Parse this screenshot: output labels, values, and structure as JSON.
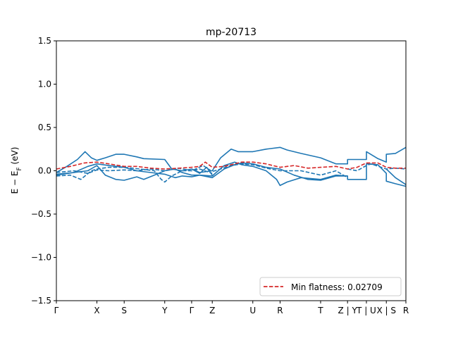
{
  "chart_data": {
    "type": "line",
    "title": "mp-20713",
    "ylabel": "E − E_F (eV)",
    "xlabel": "",
    "ylim": [
      -1.5,
      1.5
    ],
    "yticks": [
      -1.5,
      -1.0,
      -0.5,
      0.0,
      0.5,
      1.0,
      1.5
    ],
    "ytick_labels": [
      "−1.5",
      "−1.0",
      "−0.5",
      "0.0",
      "0.5",
      "1.0",
      "1.5"
    ],
    "xlim": [
      0,
      1
    ],
    "xticks": [
      {
        "label": "Γ",
        "pos": 0.0
      },
      {
        "label": "X",
        "pos": 0.116
      },
      {
        "label": "S",
        "pos": 0.194
      },
      {
        "label": "Y",
        "pos": 0.31
      },
      {
        "label": "Γ",
        "pos": 0.387
      },
      {
        "label": "Z",
        "pos": 0.446
      },
      {
        "label": "U",
        "pos": 0.562
      },
      {
        "label": "R",
        "pos": 0.64
      },
      {
        "label": "T",
        "pos": 0.756
      },
      {
        "label": "Z | Y",
        "pos": 0.833
      },
      {
        "label": "T | U",
        "pos": 0.887
      },
      {
        "label": "X | S",
        "pos": 0.944
      },
      {
        "label": "R",
        "pos": 1.0
      }
    ],
    "grid": false,
    "legend": {
      "position": "bottom-right",
      "entries": [
        "Min flatness: 0.02709"
      ]
    },
    "colors": {
      "bands": "#1f77b4",
      "flat": "#d62728"
    },
    "series": [
      {
        "style": "solid",
        "color": "#1f77b4",
        "x": [
          0,
          0.03,
          0.06,
          0.082,
          0.1,
          0.116,
          0.14,
          0.17,
          0.194,
          0.23,
          0.25,
          0.31,
          0.33,
          0.36,
          0.387,
          0.41,
          0.446,
          0.47,
          0.5,
          0.52,
          0.562,
          0.6,
          0.64,
          0.66,
          0.7,
          0.756,
          0.8,
          0.833,
          0.833,
          0.887,
          0.887,
          0.92,
          0.944,
          0.944,
          0.97,
          1.0
        ],
        "y": [
          -0.02,
          0.05,
          0.13,
          0.22,
          0.15,
          0.12,
          0.15,
          0.19,
          0.19,
          0.16,
          0.14,
          0.13,
          0.02,
          0.0,
          0.02,
          -0.02,
          0.0,
          0.15,
          0.25,
          0.22,
          0.22,
          0.25,
          0.27,
          0.24,
          0.2,
          0.15,
          0.08,
          0.08,
          0.13,
          0.13,
          0.22,
          0.14,
          0.1,
          0.19,
          0.2,
          0.27
        ]
      },
      {
        "style": "solid",
        "color": "#1f77b4",
        "x": [
          0,
          0.05,
          0.09,
          0.116,
          0.15,
          0.194,
          0.23,
          0.27,
          0.31,
          0.34,
          0.36,
          0.387,
          0.41,
          0.446,
          0.48,
          0.51,
          0.53,
          0.562,
          0.6,
          0.63,
          0.64,
          0.66,
          0.7,
          0.756,
          0.8,
          0.833,
          0.833,
          0.887,
          0.887,
          0.92,
          0.944,
          0.944,
          0.97,
          1.0
        ],
        "y": [
          -0.04,
          -0.02,
          0.05,
          0.08,
          0.06,
          0.04,
          0.0,
          -0.02,
          -0.04,
          -0.08,
          -0.06,
          -0.07,
          -0.05,
          -0.06,
          0.06,
          0.1,
          0.07,
          0.05,
          0.0,
          -0.1,
          -0.17,
          -0.13,
          -0.08,
          -0.1,
          -0.05,
          -0.06,
          -0.1,
          -0.1,
          0.08,
          0.07,
          -0.03,
          -0.12,
          -0.15,
          -0.18
        ]
      },
      {
        "style": "solid",
        "color": "#1f77b4",
        "x": [
          0,
          0.05,
          0.09,
          0.116,
          0.14,
          0.17,
          0.194,
          0.23,
          0.25,
          0.28,
          0.31,
          0.34,
          0.36,
          0.387,
          0.41,
          0.446,
          0.48,
          0.51,
          0.53,
          0.562,
          0.6,
          0.64,
          0.68,
          0.72,
          0.756,
          0.8,
          0.833
        ],
        "y": [
          -0.05,
          -0.02,
          0.0,
          0.06,
          -0.05,
          -0.1,
          -0.11,
          -0.07,
          -0.1,
          -0.05,
          0.0,
          0.02,
          -0.02,
          -0.05,
          -0.05,
          -0.08,
          0.02,
          0.07,
          0.09,
          0.08,
          0.04,
          0.02,
          -0.05,
          -0.1,
          -0.11,
          -0.06,
          -0.06
        ]
      },
      {
        "style": "solid",
        "color": "#1f77b4",
        "x": [
          0.387,
          0.41,
          0.43,
          0.446
        ],
        "y": [
          0.02,
          -0.03,
          0.04,
          -0.05
        ]
      },
      {
        "style": "solid",
        "color": "#1f77b4",
        "x": [
          0.944,
          0.97,
          1.0
        ],
        "y": [
          0.02,
          -0.08,
          -0.16
        ]
      },
      {
        "style": "dashed",
        "color": "#1f77b4",
        "x": [
          0,
          0.04,
          0.07,
          0.1,
          0.116,
          0.15,
          0.194,
          0.24,
          0.28,
          0.3,
          0.31,
          0.33,
          0.36,
          0.387,
          0.42,
          0.446,
          0.47,
          0.5,
          0.53,
          0.562,
          0.6,
          0.64,
          0.7,
          0.756,
          0.8,
          0.833
        ],
        "y": [
          -0.06,
          -0.05,
          -0.1,
          0.0,
          0.02,
          0.04,
          0.04,
          0.02,
          0.0,
          -0.1,
          -0.13,
          -0.06,
          0.0,
          0.0,
          0.06,
          -0.01,
          0.02,
          0.06,
          0.08,
          0.07,
          0.03,
          0.0,
          0.0,
          -0.05,
          0.0,
          -0.08
        ]
      },
      {
        "style": "dashed",
        "color": "#1f77b4",
        "x": [
          0,
          0.05,
          0.09,
          0.116,
          0.15,
          0.194,
          0.23,
          0.27,
          0.31,
          0.35,
          0.387,
          0.41,
          0.446
        ],
        "y": [
          -0.02,
          0.0,
          -0.03,
          0.01,
          0.0,
          0.01,
          0.0,
          0.02,
          0.0,
          0.03,
          0.0,
          0.02,
          -0.03
        ]
      },
      {
        "style": "dashed",
        "color": "#1f77b4",
        "x": [
          0.833,
          0.86,
          0.887,
          0.9,
          0.944,
          0.97,
          1.0
        ],
        "y": [
          0.02,
          0.0,
          0.06,
          0.08,
          0.02,
          0.03,
          0.02
        ]
      },
      {
        "name": "Min flatness: 0.02709",
        "style": "dashed",
        "color": "#d62728",
        "x": [
          0,
          0.04,
          0.08,
          0.116,
          0.15,
          0.194,
          0.23,
          0.27,
          0.31,
          0.35,
          0.387,
          0.41,
          0.426,
          0.446,
          0.48,
          0.51,
          0.53,
          0.562,
          0.6,
          0.64,
          0.68,
          0.72,
          0.756,
          0.8,
          0.833,
          0.86,
          0.887,
          0.92,
          0.944,
          0.97,
          1.0
        ],
        "y": [
          0.02,
          0.05,
          0.09,
          0.1,
          0.08,
          0.05,
          0.05,
          0.03,
          0.02,
          0.03,
          0.04,
          0.05,
          0.1,
          0.04,
          0.05,
          0.08,
          0.1,
          0.1,
          0.08,
          0.04,
          0.06,
          0.03,
          0.04,
          0.05,
          0.02,
          0.04,
          0.09,
          0.09,
          0.04,
          0.03,
          0.03
        ]
      }
    ]
  }
}
